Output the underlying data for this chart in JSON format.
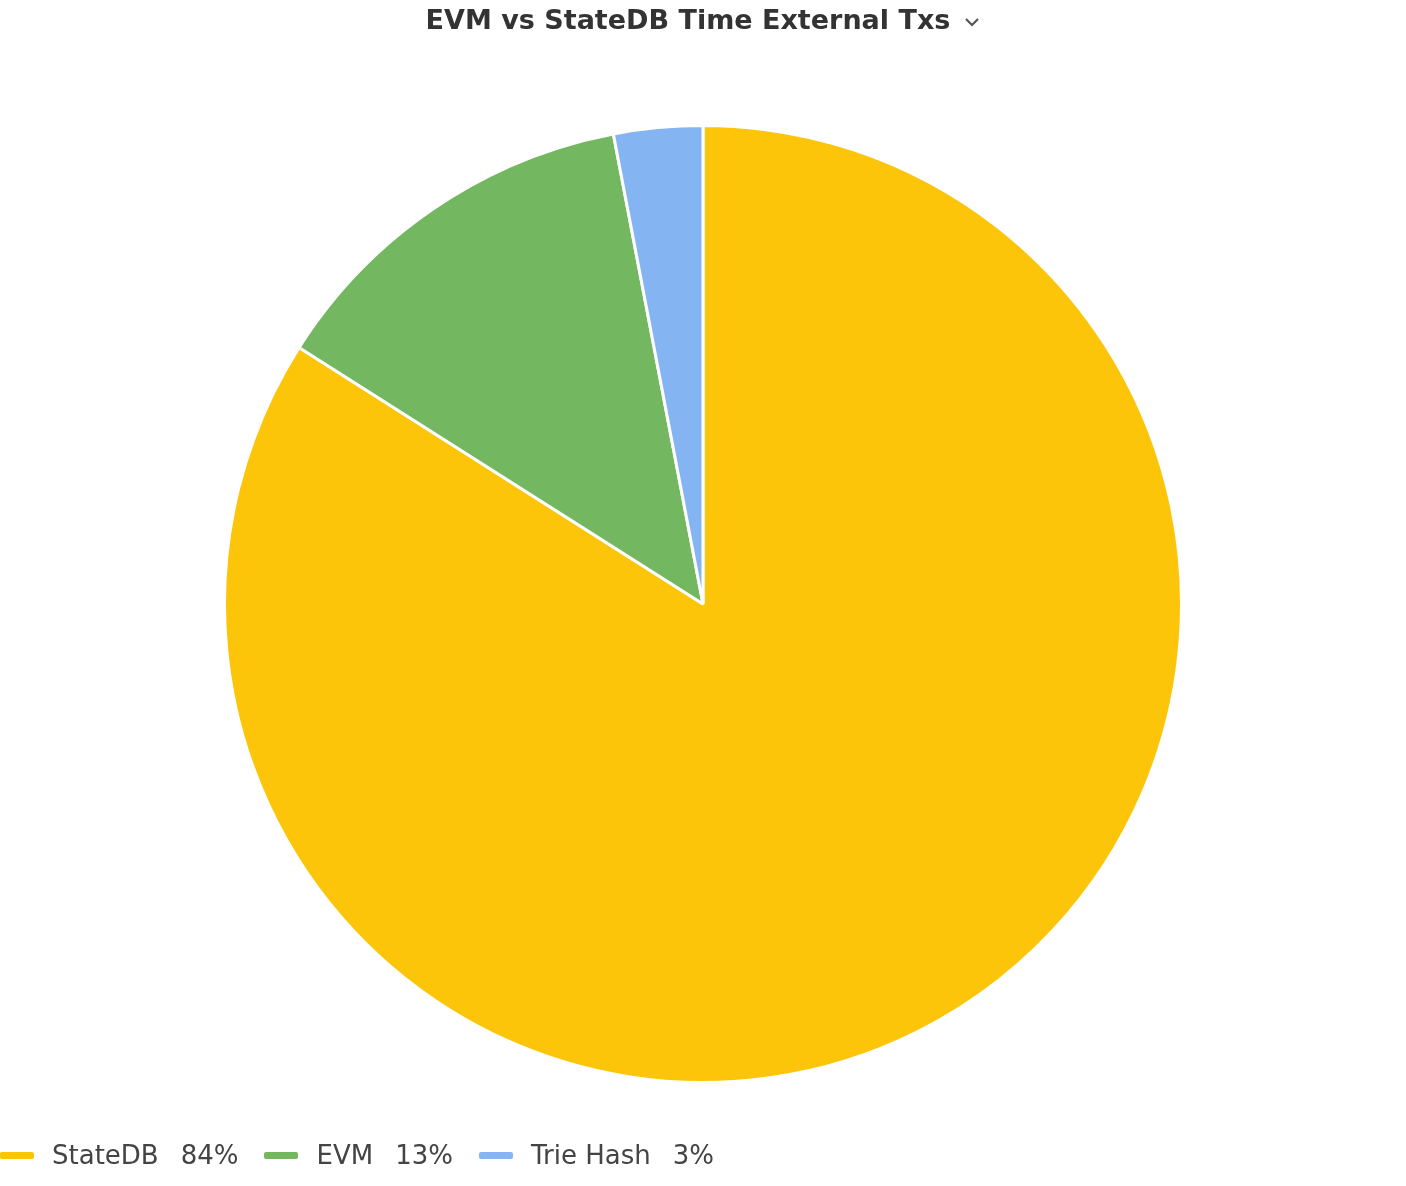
{
  "chart_data": {
    "type": "pie",
    "title": "EVM vs StateDB Time External Txs",
    "categories": [
      "StateDB",
      "EVM",
      "Trie Hash"
    ],
    "values": [
      84,
      13,
      3
    ],
    "value_labels": [
      "84%",
      "13%",
      "3%"
    ],
    "colors": [
      "#fcc50a",
      "#73b761",
      "#85b4f2"
    ],
    "legend": "bottom"
  }
}
